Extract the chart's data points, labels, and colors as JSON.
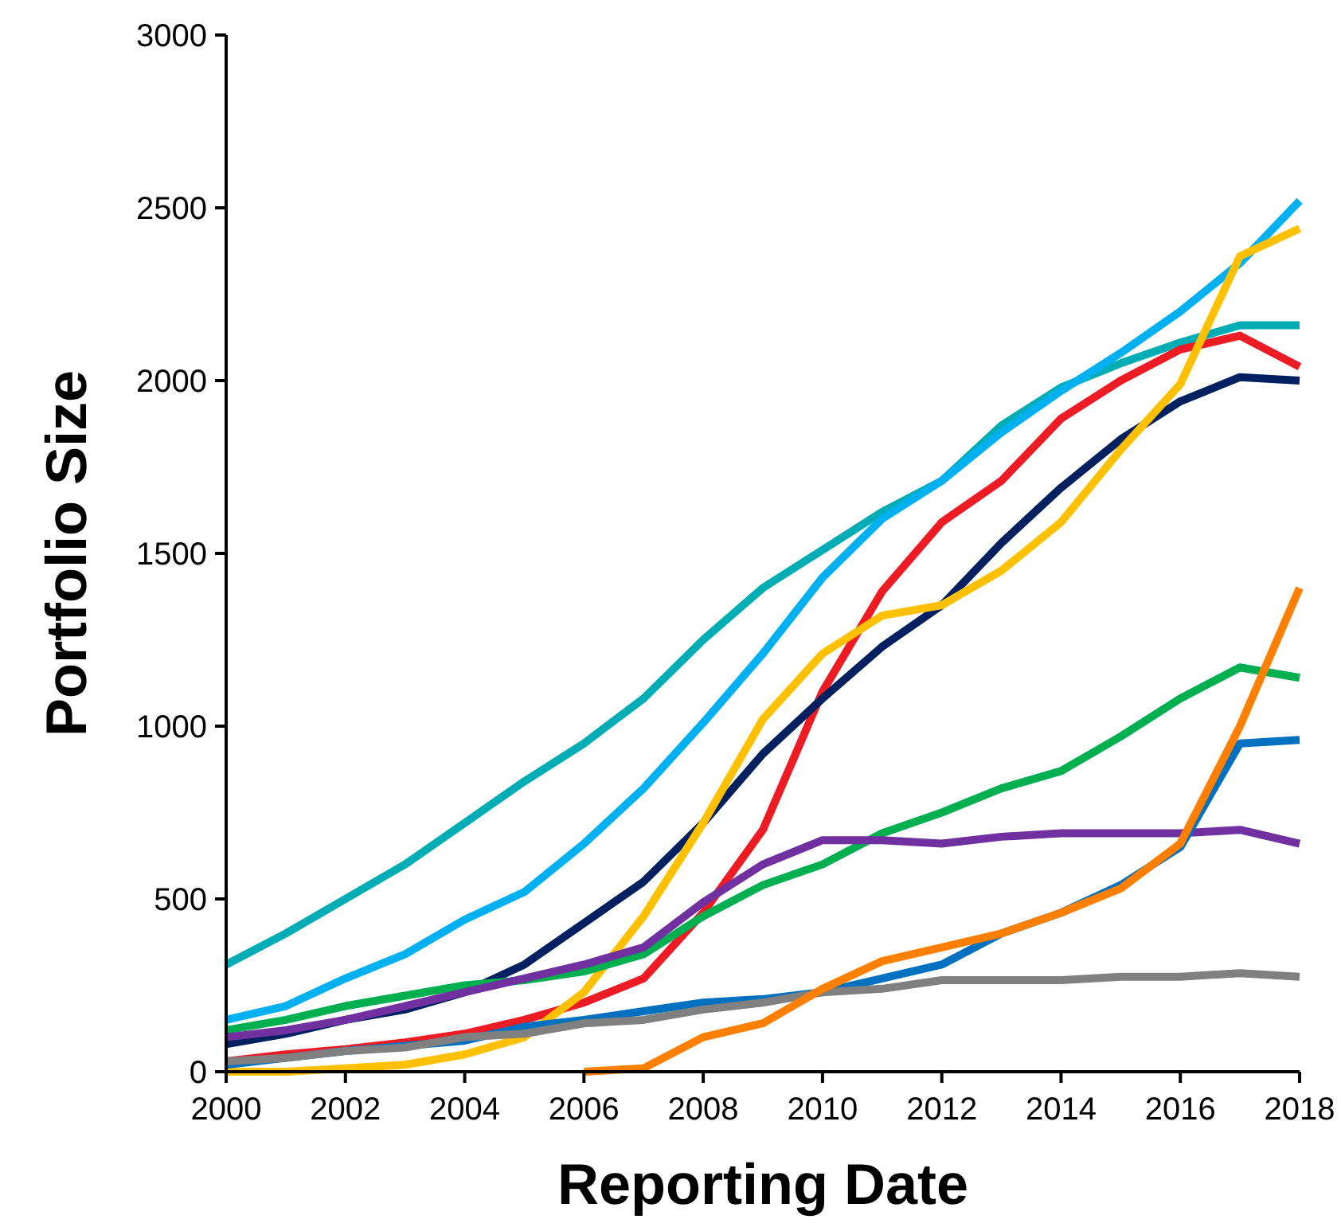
{
  "chart_data": {
    "type": "line",
    "xlabel": "Reporting Date",
    "ylabel": "Portfolio Size",
    "x": [
      2000,
      2001,
      2002,
      2003,
      2004,
      2005,
      2006,
      2007,
      2008,
      2009,
      2010,
      2011,
      2012,
      2013,
      2014,
      2015,
      2016,
      2017,
      2018
    ],
    "xlim": [
      2000,
      2018
    ],
    "xticks": [
      2000,
      2002,
      2004,
      2006,
      2008,
      2010,
      2012,
      2014,
      2016,
      2018
    ],
    "ylim": [
      0,
      3000
    ],
    "yticks": [
      0,
      500,
      1000,
      1500,
      2000,
      2500,
      3000
    ],
    "marker": "none",
    "line_style": "solid",
    "series": [
      {
        "color": "#00adb5",
        "values": [
          310,
          400,
          500,
          600,
          720,
          840,
          950,
          1080,
          1250,
          1400,
          1510,
          1620,
          1710,
          1870,
          1980,
          2050,
          2110,
          2160,
          2160
        ]
      },
      {
        "color": "#00b0f0",
        "values": [
          150,
          190,
          270,
          340,
          440,
          520,
          660,
          820,
          1010,
          1210,
          1430,
          1600,
          1710,
          1850,
          1970,
          2080,
          2200,
          2340,
          2520
        ]
      },
      {
        "color": "#ed1c24",
        "values": [
          30,
          50,
          65,
          85,
          110,
          150,
          200,
          270,
          460,
          700,
          1100,
          1390,
          1590,
          1710,
          1890,
          2000,
          2090,
          2130,
          2040
        ]
      },
      {
        "color": "#002060",
        "values": [
          80,
          110,
          150,
          180,
          230,
          310,
          430,
          550,
          720,
          920,
          1080,
          1230,
          1350,
          1530,
          1690,
          1830,
          1940,
          2010,
          2000
        ]
      },
      {
        "color": "#ffc000",
        "values": [
          0,
          0,
          10,
          20,
          50,
          100,
          230,
          450,
          720,
          1020,
          1210,
          1320,
          1350,
          1450,
          1590,
          1800,
          1990,
          2360,
          2440
        ]
      },
      {
        "color": "#00b050",
        "values": [
          120,
          150,
          190,
          220,
          250,
          265,
          290,
          340,
          450,
          540,
          600,
          690,
          750,
          820,
          870,
          970,
          1080,
          1170,
          1140
        ]
      },
      {
        "color": "#7030a0",
        "values": [
          100,
          120,
          150,
          190,
          230,
          270,
          310,
          360,
          490,
          600,
          670,
          670,
          660,
          680,
          690,
          690,
          690,
          700,
          660
        ]
      },
      {
        "color": "#0070c0",
        "values": [
          20,
          40,
          60,
          75,
          90,
          130,
          150,
          175,
          200,
          210,
          230,
          270,
          310,
          400,
          460,
          540,
          650,
          950,
          960
        ]
      },
      {
        "color": "#808080",
        "values": [
          30,
          40,
          60,
          70,
          100,
          110,
          140,
          150,
          180,
          200,
          230,
          240,
          265,
          265,
          265,
          275,
          275,
          285,
          275
        ]
      },
      {
        "color": "#ff7f00",
        "values": [
          null,
          null,
          null,
          null,
          null,
          null,
          0,
          10,
          100,
          140,
          240,
          320,
          360,
          400,
          460,
          530,
          660,
          1000,
          1400
        ]
      }
    ]
  }
}
